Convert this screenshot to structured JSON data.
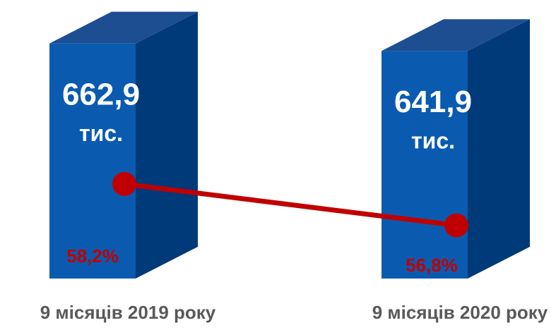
{
  "chart_data": {
    "type": "bar-line",
    "categories": [
      "9 місяців 2019 року",
      "9 місяців 2020 року"
    ],
    "series": [
      {
        "type": "bar",
        "color": "#0a5bb0",
        "values": [
          662.9,
          641.9
        ],
        "value_labels": [
          "662,9",
          "641,9"
        ],
        "unit": "тис."
      },
      {
        "type": "line",
        "axis": "y2",
        "color": "#c00000",
        "values": [
          58.2,
          56.8
        ],
        "value_labels": [
          "58,2%",
          "56,8%"
        ]
      }
    ],
    "ylim": [
      0,
      700
    ],
    "y2lim": [
      55,
      63.4
    ]
  }
}
